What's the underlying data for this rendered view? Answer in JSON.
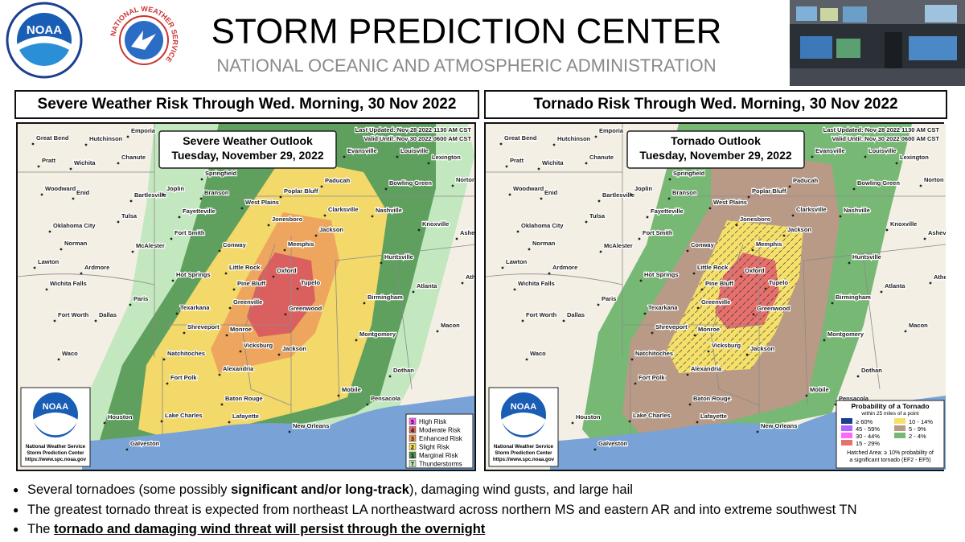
{
  "header": {
    "title": "STORM PREDICTION CENTER",
    "subtitle": "NATIONAL OCEANIC AND ATMOSPHERIC ADMINISTRATION",
    "noaa_logo": "NOAA",
    "nws_logo": "NATIONAL WEATHER SERVICE"
  },
  "panels": [
    {
      "title": "Severe Weather Risk Through Wed. Morning, 30 Nov 2022",
      "outlook_title": "Severe Weather Outlook",
      "outlook_date": "Tuesday, November 29, 2022",
      "updated": "Last Updated: Nov 28 2022 1130 AM CST",
      "valid": "Valid Until: Nov 30 2022 0600 AM CST",
      "legend": {
        "entries": [
          {
            "number": "5",
            "label": "High Risk"
          },
          {
            "number": "4",
            "label": "Moderate Risk"
          },
          {
            "number": "3",
            "label": "Enhanced Risk"
          },
          {
            "number": "2",
            "label": "Slight Risk"
          },
          {
            "number": "1",
            "label": "Marginal Risk"
          },
          {
            "number": "T",
            "label": "Thunderstorms"
          }
        ]
      }
    },
    {
      "title": "Tornado Risk Through Wed. Morning, 30 Nov 2022",
      "outlook_title": "Tornado Outlook",
      "outlook_date": "Tuesday, November 29, 2022",
      "updated": "Last Updated: Nov 28 2022 1130 AM CST",
      "valid": "Valid Until: Nov 30 2022 0600 AM CST",
      "legend": {
        "title": "Probability of a Tornado",
        "subtitle": "within 25 miles of a point",
        "entries": [
          "≥ 60%",
          "45 - 59%",
          "30 - 44%",
          "15 - 29%",
          "10 - 14%",
          "5 - 9%",
          "2 - 4%"
        ],
        "note": [
          "Hatched Area: ≥ 10% probability of",
          "a significant tornado (EF2 - EF5)"
        ]
      }
    }
  ],
  "map_logo": {
    "name": "NOAA",
    "lines": [
      "National Weather Service",
      "Storm Prediction Center",
      "https://www.spc.noaa.gov"
    ]
  },
  "cities": [
    "Great Bend",
    "Emporia",
    "Hutchinson",
    "Pratt",
    "Wichita",
    "Chanute",
    "Woodward",
    "Enid",
    "Bartlesville",
    "Springfield",
    "Joplin",
    "Branson",
    "West Plains",
    "Poplar Bluff",
    "Paducah",
    "Evansville",
    "Louisville",
    "Lexington",
    "Bowling Green",
    "Norton",
    "Tulsa",
    "Fayetteville",
    "Jonesboro",
    "Clarksville",
    "Nashville",
    "Oklahoma City",
    "Fort Smith",
    "Jackson",
    "Knoxville",
    "Asheville",
    "Norman",
    "McAlester",
    "Conway",
    "Memphis",
    "Lawton",
    "Ardmore",
    "Little Rock",
    "Huntsville",
    "Hot Springs",
    "Oxford",
    "Tupelo",
    "Pine Bluff",
    "Wichita Falls",
    "Atlanta",
    "Athens",
    "Paris",
    "Greenville",
    "Birmingham",
    "Greenwood",
    "Texarkana",
    "Fort Worth",
    "Dallas",
    "Shreveport",
    "Monroe",
    "Macon",
    "Montgomery",
    "Vicksburg",
    "Jackson",
    "Natchitoches",
    "Waco",
    "Alexandria",
    "Dothan",
    "Fort Polk",
    "Mobile",
    "Baton Rouge",
    "Pensacola",
    "Lake Charles",
    "Lafayette",
    "Houston",
    "New Orleans",
    "Galveston"
  ],
  "bullets": [
    [
      "Several tornadoes (some possibly ",
      "significant and/or long-track",
      "), damaging wind gusts, and large hail"
    ],
    [
      "The greatest tornado threat is expected from northeast LA northeastward across northern MS and eastern AR and into extreme southwest TN"
    ],
    [
      "The ",
      "tornado and damaging wind threat will persist through the overnight"
    ]
  ]
}
